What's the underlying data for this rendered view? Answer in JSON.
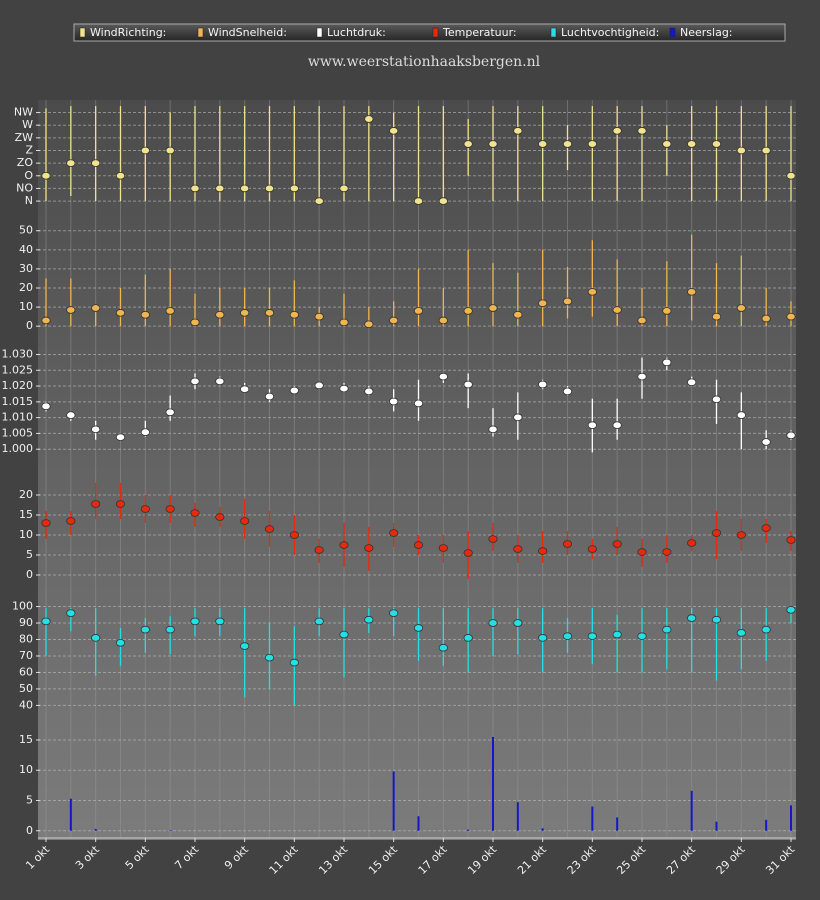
{
  "chart_data": {
    "subtitle": "www.weerstationhaaksbergen.nl",
    "categories": [
      "1 okt",
      null,
      "3 okt",
      null,
      "5 okt",
      null,
      "7 okt",
      null,
      "9 okt",
      null,
      "11 okt",
      null,
      "13 okt",
      null,
      "15 okt",
      null,
      "17 okt",
      null,
      "19 okt",
      null,
      "21 okt",
      null,
      "23 okt",
      null,
      "25 okt",
      null,
      "27 okt",
      null,
      "29 okt",
      null,
      "31 okt"
    ],
    "grid": true,
    "panels": [
      {
        "type": "range",
        "name": "WindRichting:",
        "color": "#f2e38e",
        "ylim": [
          -14,
          349
        ],
        "yticks": [
          {
            "value": 0,
            "label": "N"
          },
          {
            "value": 45,
            "label": "NO"
          },
          {
            "value": 90,
            "label": "O"
          },
          {
            "value": 135,
            "label": "ZO"
          },
          {
            "value": 180,
            "label": "Z"
          },
          {
            "value": 225,
            "label": "ZW"
          },
          {
            "value": 270,
            "label": "W"
          },
          {
            "value": 315,
            "label": "NW"
          }
        ],
        "values": [
          90,
          135,
          135,
          90,
          180,
          180,
          45,
          45,
          45,
          45,
          45,
          0,
          45,
          292,
          250,
          0,
          0,
          203,
          203,
          250,
          203,
          203,
          203,
          250,
          250,
          203,
          203,
          203,
          180,
          180,
          90
        ],
        "low": [
          0,
          18,
          0,
          0,
          0,
          0,
          0,
          0,
          0,
          0,
          0,
          0,
          0,
          0,
          0,
          0,
          0,
          90,
          0,
          0,
          0,
          110,
          0,
          0,
          0,
          90,
          0,
          0,
          0,
          0,
          0
        ],
        "high": [
          330,
          338,
          338,
          338,
          338,
          315,
          338,
          338,
          338,
          338,
          338,
          338,
          338,
          338,
          315,
          338,
          338,
          292,
          338,
          338,
          338,
          270,
          338,
          338,
          338,
          270,
          338,
          338,
          338,
          338,
          338
        ]
      },
      {
        "type": "range",
        "name": "WindSnelheid:",
        "color": "#f0b450",
        "ylim": [
          -2,
          53
        ],
        "yticks": [
          0,
          10,
          20,
          30,
          40,
          50
        ],
        "values": [
          3,
          8.5,
          9.5,
          7,
          6,
          8,
          2,
          6,
          7,
          7,
          6,
          5,
          2,
          1,
          3,
          8,
          3,
          8,
          9.5,
          6,
          12,
          13,
          18,
          8.5,
          3,
          8,
          18,
          5,
          9.5,
          4,
          5
        ],
        "low": [
          0,
          0,
          0,
          0,
          0,
          0,
          0,
          0,
          0,
          0,
          0,
          0,
          0,
          0,
          0,
          0,
          0,
          0,
          0,
          0,
          0,
          4,
          5,
          0,
          0,
          0,
          3,
          0,
          0,
          0,
          0
        ],
        "high": [
          25,
          25,
          10,
          20,
          27,
          30,
          17,
          20,
          20,
          20,
          24,
          10,
          17,
          10,
          13,
          30,
          20,
          40,
          33,
          28,
          40,
          31,
          45,
          35,
          20,
          34,
          48,
          33,
          37,
          20,
          13
        ]
      },
      {
        "type": "range",
        "name": "Luchtdruk:",
        "color": "#ffffff",
        "ylim": [
          995,
          1033
        ],
        "yticks": [
          {
            "value": 1000,
            "label": "1.000"
          },
          {
            "value": 1005,
            "label": "1.005"
          },
          {
            "value": 1010,
            "label": "1.010"
          },
          {
            "value": 1015,
            "label": "1.015"
          },
          {
            "value": 1020,
            "label": "1.020"
          },
          {
            "value": 1025,
            "label": "1.025"
          },
          {
            "value": 1030,
            "label": "1.030"
          }
        ],
        "values": [
          1013.6,
          1010.8,
          1006.3,
          1003.8,
          1005.4,
          1011.7,
          1021.5,
          1021.5,
          1019,
          1016.7,
          1018.6,
          1020.2,
          1019.2,
          1018.3,
          1015.1,
          1014.5,
          1023,
          1020.5,
          1006.3,
          1010.1,
          1020.5,
          1018.3,
          1007.6,
          1007.6,
          1023,
          1027.5,
          1021.2,
          1015.8,
          1010.8,
          1002.3,
          1004.4
        ],
        "low": [
          1012,
          1009,
          1003,
          1003,
          1004,
          1009,
          1019,
          1021,
          1018,
          1015,
          1018,
          1019,
          1018,
          1017,
          1012,
          1009,
          1021,
          1013,
          1004,
          1003,
          1019,
          1017,
          999,
          1003,
          1016,
          1025,
          1020,
          1008,
          1000,
          1000,
          1003
        ],
        "high": [
          1015,
          1012,
          1009,
          1005,
          1009,
          1017,
          1024,
          1023,
          1021,
          1019,
          1020,
          1021,
          1021,
          1020,
          1019,
          1022,
          1024,
          1024,
          1013,
          1018,
          1022,
          1020,
          1016,
          1016,
          1029,
          1029,
          1023,
          1022,
          1018,
          1006,
          1006
        ]
      },
      {
        "type": "range",
        "name": "Temperatuur:",
        "color": "#e82a0c",
        "ylim": [
          -2.5,
          23.75
        ],
        "yticks": [
          0,
          5,
          10,
          15,
          20
        ],
        "values": [
          13,
          13.5,
          17.75,
          17.75,
          16.5,
          16.5,
          15.5,
          14.5,
          13.5,
          11.5,
          10,
          6.25,
          7.5,
          6.75,
          10.5,
          7.5,
          6.75,
          5.5,
          9,
          6.5,
          6,
          7.75,
          6.5,
          7.75,
          5.75,
          5.75,
          8,
          10.5,
          10,
          11.75,
          8.75
        ],
        "low": [
          9,
          10,
          14,
          14,
          13,
          13,
          12,
          12,
          9,
          7,
          5,
          3,
          2,
          1,
          7,
          5,
          3,
          -1,
          6,
          3,
          3,
          5,
          4,
          5,
          2,
          3,
          6,
          4,
          6,
          8,
          6
        ],
        "high": [
          16,
          16,
          23,
          23,
          20,
          20,
          18,
          17,
          19,
          16,
          15,
          9,
          13,
          12,
          13,
          10,
          10,
          11,
          13,
          10,
          11,
          11,
          9,
          12,
          9,
          10,
          10,
          16,
          14,
          14,
          11
        ]
      },
      {
        "type": "range",
        "name": "Luchtvochtigheid:",
        "color": "#22e0e4",
        "ylim": [
          36,
          107
        ],
        "yticks": [
          40,
          50,
          60,
          70,
          80,
          90,
          100
        ],
        "values": [
          91,
          96,
          81,
          78,
          86,
          86,
          91,
          91,
          76,
          69,
          66,
          91,
          83,
          92,
          96,
          87,
          75,
          81,
          90,
          90,
          81,
          82,
          82,
          83,
          82,
          86,
          93,
          92,
          84,
          86,
          98
        ],
        "low": [
          70,
          85,
          58,
          64,
          72,
          71,
          82,
          82,
          45,
          50,
          40,
          82,
          57,
          84,
          82,
          67,
          64,
          60,
          70,
          71,
          60,
          72,
          65,
          60,
          60,
          62,
          60,
          55,
          62,
          67,
          90
        ],
        "high": [
          99,
          99,
          99,
          87,
          93,
          94,
          99,
          99,
          99,
          90,
          88,
          99,
          99,
          99,
          99,
          99,
          99,
          99,
          99,
          99,
          99,
          93,
          99,
          95,
          99,
          99,
          99,
          99,
          99,
          99,
          99
        ]
      },
      {
        "type": "bar",
        "name": "Neerslag:",
        "color": "#1418c8",
        "ylim": [
          -0.7,
          18.3
        ],
        "yticks": [
          0,
          5,
          10,
          15
        ],
        "values": [
          0,
          5.3,
          0.3,
          0,
          0,
          0.1,
          0,
          0,
          0,
          0,
          0,
          0,
          0,
          0,
          9.8,
          2.4,
          0,
          0.2,
          15.5,
          4.7,
          0.4,
          0,
          4,
          2.2,
          0,
          0,
          6.6,
          1.5,
          0,
          1.8,
          4.2
        ]
      }
    ]
  }
}
